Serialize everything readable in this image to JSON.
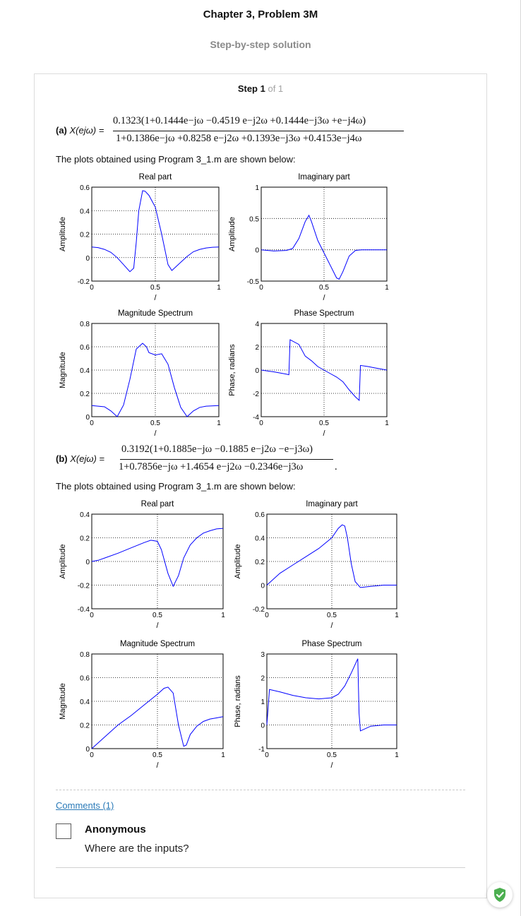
{
  "page": {
    "title": "Chapter 3, Problem 3M",
    "subtitle": "Step-by-step solution",
    "step_label": "Step 1",
    "step_of": "of 1"
  },
  "part_a": {
    "label": "(a)",
    "lhs": "X(ejω) =",
    "numerator": "0.1323(1+0.1444e−jω −0.4519 e−j2ω +0.1444e−j3ω +e−j4ω)",
    "denominator": "1+0.1386e−jω +0.8258 e−j2ω +0.1393e−j3ω +0.4153e−j4ω",
    "plots_text": "The plots obtained using Program 3_1.m are shown below:"
  },
  "part_b": {
    "label": "(b)",
    "lhs": "X(ejω) =",
    "numerator": "0.3192(1+0.1885e−jω −0.1885 e−j2ω −e−j3ω)",
    "denominator": "1+0.7856e−jω +1.4654 e−j2ω −0.2346e−j3ω",
    "end_mark": ".",
    "plots_text": "The plots obtained using Program 3_1.m are shown below:"
  },
  "comments": {
    "link_label": "Comments (1)",
    "items": [
      {
        "author": "Anonymous",
        "text": "Where are the inputs?"
      }
    ]
  },
  "colors": {
    "curve": "#0000ff",
    "link": "#2a7ab8",
    "shield": "#4caf50"
  },
  "icons": {
    "shield": "shield-check-icon",
    "avatar": "avatar-placeholder-icon"
  },
  "chart_data": [
    {
      "type": "line",
      "title": "Real part",
      "xlabel": "/",
      "ylabel": "Amplitude",
      "xlim": [
        0,
        1
      ],
      "ylim": [
        -0.2,
        0.6
      ],
      "xticks": [
        "0",
        "0.5",
        "1"
      ],
      "yticks": [
        "-0.2",
        "0",
        "0.2",
        "0.4",
        "0.6"
      ],
      "x": [
        0,
        0.05,
        0.1,
        0.15,
        0.2,
        0.25,
        0.3,
        0.33,
        0.35,
        0.37,
        0.4,
        0.42,
        0.45,
        0.5,
        0.55,
        0.6,
        0.63,
        0.65,
        0.7,
        0.75,
        0.8,
        0.85,
        0.9,
        0.95,
        1
      ],
      "series": [
        {
          "values": [
            0.09,
            0.085,
            0.07,
            0.045,
            0,
            -0.06,
            -0.12,
            -0.09,
            0.13,
            0.4,
            0.57,
            0.565,
            0.53,
            0.43,
            0.2,
            -0.06,
            -0.11,
            -0.09,
            -0.04,
            0.01,
            0.05,
            0.07,
            0.082,
            0.088,
            0.09
          ]
        }
      ]
    },
    {
      "type": "line",
      "title": "Imaginary part",
      "xlabel": "/",
      "ylabel": "Amplitude",
      "xlim": [
        0,
        1
      ],
      "ylim": [
        -0.5,
        1
      ],
      "xticks": [
        "0",
        "0.5",
        "1"
      ],
      "yticks": [
        "-0.5",
        "0",
        "0.5",
        "1"
      ],
      "x": [
        0,
        0.1,
        0.2,
        0.25,
        0.3,
        0.35,
        0.38,
        0.4,
        0.45,
        0.5,
        0.55,
        0.6,
        0.62,
        0.65,
        0.7,
        0.75,
        0.8,
        0.9,
        1
      ],
      "series": [
        {
          "values": [
            0,
            -0.02,
            -0.01,
            0.02,
            0.18,
            0.45,
            0.55,
            0.45,
            0.15,
            -0.05,
            -0.25,
            -0.45,
            -0.47,
            -0.35,
            -0.1,
            -0.01,
            0,
            0,
            0
          ]
        }
      ]
    },
    {
      "type": "line",
      "title": "Magnitude Spectrum",
      "xlabel": "/",
      "ylabel": "Magnitude",
      "xlim": [
        0,
        1
      ],
      "ylim": [
        0,
        0.8
      ],
      "xticks": [
        "0",
        "0.5",
        "1"
      ],
      "yticks": [
        "0",
        "0.2",
        "0.4",
        "0.6",
        "0.8"
      ],
      "x": [
        0,
        0.1,
        0.15,
        0.2,
        0.25,
        0.3,
        0.35,
        0.4,
        0.43,
        0.45,
        0.5,
        0.55,
        0.6,
        0.65,
        0.7,
        0.75,
        0.8,
        0.85,
        0.9,
        1
      ],
      "series": [
        {
          "values": [
            0.095,
            0.085,
            0.05,
            0,
            0.1,
            0.32,
            0.58,
            0.63,
            0.6,
            0.55,
            0.53,
            0.54,
            0.45,
            0.25,
            0.08,
            0,
            0.05,
            0.08,
            0.09,
            0.095
          ]
        }
      ]
    },
    {
      "type": "line",
      "title": "Phase Spectrum",
      "xlabel": "/",
      "ylabel": "Phase, radians",
      "xlim": [
        0,
        1
      ],
      "ylim": [
        -4,
        4
      ],
      "xticks": [
        "0",
        "0.5",
        "1"
      ],
      "yticks": [
        "-4",
        "-2",
        "0",
        "2",
        "4"
      ],
      "x": [
        0,
        0.05,
        0.1,
        0.15,
        0.2,
        0.22,
        0.23,
        0.3,
        0.35,
        0.4,
        0.45,
        0.5,
        0.55,
        0.6,
        0.65,
        0.7,
        0.75,
        0.78,
        0.79,
        0.85,
        0.9,
        0.95,
        1
      ],
      "series": [
        {
          "values": [
            0,
            -0.08,
            -0.15,
            -0.25,
            -0.35,
            -0.4,
            2.6,
            2.2,
            1.2,
            0.8,
            0.3,
            0,
            -0.3,
            -0.6,
            -1,
            -1.7,
            -2.3,
            -2.6,
            0.4,
            0.3,
            0.2,
            0.1,
            0
          ]
        }
      ]
    },
    {
      "type": "line",
      "title": "Real part",
      "xlabel": "/",
      "ylabel": "Amplitude",
      "xlim": [
        0,
        1
      ],
      "ylim": [
        -0.4,
        0.4
      ],
      "xticks": [
        "0",
        "0.5",
        "1"
      ],
      "yticks": [
        "-0.4",
        "-0.2",
        "0",
        "0.2",
        "0.4"
      ],
      "x": [
        0,
        0.05,
        0.1,
        0.2,
        0.3,
        0.4,
        0.45,
        0.5,
        0.53,
        0.58,
        0.62,
        0.66,
        0.7,
        0.75,
        0.8,
        0.85,
        0.9,
        0.95,
        1
      ],
      "series": [
        {
          "values": [
            0,
            0.01,
            0.03,
            0.07,
            0.115,
            0.16,
            0.18,
            0.17,
            0.1,
            -0.1,
            -0.21,
            -0.12,
            0.03,
            0.14,
            0.2,
            0.24,
            0.26,
            0.275,
            0.28
          ]
        }
      ]
    },
    {
      "type": "line",
      "title": "Imaginary part",
      "xlabel": "/",
      "ylabel": "Amplitude",
      "xlim": [
        0,
        1
      ],
      "ylim": [
        -0.2,
        0.6
      ],
      "xticks": [
        "0",
        "0.5",
        "1"
      ],
      "yticks": [
        "-0.2",
        "0",
        "0.2",
        "0.4",
        "0.6"
      ],
      "x": [
        0,
        0.05,
        0.1,
        0.2,
        0.3,
        0.4,
        0.5,
        0.55,
        0.58,
        0.6,
        0.62,
        0.65,
        0.68,
        0.72,
        0.8,
        0.9,
        1
      ],
      "series": [
        {
          "values": [
            0,
            0.05,
            0.1,
            0.17,
            0.24,
            0.31,
            0.4,
            0.48,
            0.51,
            0.5,
            0.4,
            0.18,
            0.03,
            -0.02,
            -0.01,
            0,
            0
          ]
        }
      ]
    },
    {
      "type": "line",
      "title": "Magnitude Spectrum",
      "xlabel": "/",
      "ylabel": "Magnitude",
      "xlim": [
        0,
        1
      ],
      "ylim": [
        0,
        0.8
      ],
      "xticks": [
        "0",
        "0.5",
        "1"
      ],
      "yticks": [
        "0",
        "0.2",
        "0.4",
        "0.6",
        "0.8"
      ],
      "x": [
        0,
        0.05,
        0.1,
        0.2,
        0.3,
        0.4,
        0.5,
        0.55,
        0.58,
        0.62,
        0.66,
        0.7,
        0.72,
        0.75,
        0.8,
        0.85,
        0.9,
        0.95,
        1
      ],
      "series": [
        {
          "values": [
            0,
            0.05,
            0.1,
            0.2,
            0.28,
            0.37,
            0.46,
            0.51,
            0.52,
            0.47,
            0.2,
            0.02,
            0.03,
            0.12,
            0.19,
            0.23,
            0.25,
            0.26,
            0.27
          ]
        }
      ]
    },
    {
      "type": "line",
      "title": "Phase Spectrum",
      "xlabel": "/",
      "ylabel": "Phase, radians",
      "xlim": [
        0,
        1
      ],
      "ylim": [
        -1,
        3
      ],
      "xticks": [
        "0",
        "0.5",
        "1"
      ],
      "yticks": [
        "-1",
        "0",
        "1",
        "2",
        "3"
      ],
      "x": [
        0,
        0.02,
        0.1,
        0.2,
        0.3,
        0.4,
        0.5,
        0.55,
        0.6,
        0.65,
        0.7,
        0.71,
        0.72,
        0.8,
        0.9,
        1
      ],
      "series": [
        {
          "values": [
            0,
            1.5,
            1.4,
            1.25,
            1.15,
            1.1,
            1.15,
            1.3,
            1.65,
            2.2,
            2.8,
            0.5,
            -0.25,
            -0.05,
            0,
            0
          ]
        }
      ]
    }
  ]
}
